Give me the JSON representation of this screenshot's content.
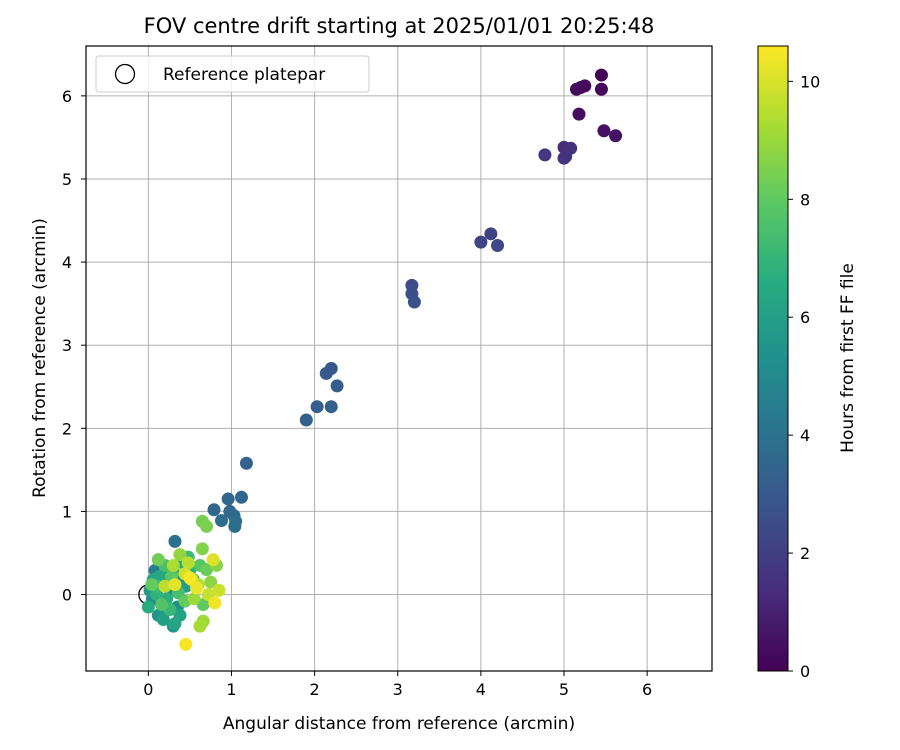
{
  "chart_data": {
    "type": "scatter",
    "title": "FOV centre drift starting at 2025/01/01 20:25:48",
    "xlabel": "Angular distance from reference (arcmin)",
    "ylabel": "Rotation from reference (arcmin)",
    "xlim": [
      -0.75,
      6.78
    ],
    "ylim": [
      -0.92,
      6.6
    ],
    "xticks": [
      0,
      1,
      2,
      3,
      4,
      5,
      6
    ],
    "yticks": [
      0,
      1,
      2,
      3,
      4,
      5,
      6
    ],
    "grid": true,
    "legend": {
      "placement": "top-left",
      "entries": [
        {
          "label": "Reference platepar",
          "marker": "open-circle"
        }
      ]
    },
    "reference_point": {
      "x": 0,
      "y": 0
    },
    "colorbar": {
      "label": "Hours from first FF file",
      "colormap": "viridis",
      "range": [
        0,
        10.6
      ],
      "ticks": [
        0,
        2,
        4,
        6,
        8,
        10
      ]
    },
    "points": [
      {
        "x": 5.45,
        "y": 6.25,
        "c": 0.1
      },
      {
        "x": 5.2,
        "y": 6.1,
        "c": 0.2
      },
      {
        "x": 5.15,
        "y": 6.08,
        "c": 0.3
      },
      {
        "x": 5.45,
        "y": 6.08,
        "c": 0.15
      },
      {
        "x": 5.25,
        "y": 6.12,
        "c": 0.25
      },
      {
        "x": 5.18,
        "y": 5.78,
        "c": 0.4
      },
      {
        "x": 5.48,
        "y": 5.58,
        "c": 0.5
      },
      {
        "x": 5.62,
        "y": 5.52,
        "c": 0.55
      },
      {
        "x": 5.0,
        "y": 5.38,
        "c": 1.4
      },
      {
        "x": 5.08,
        "y": 5.37,
        "c": 1.5
      },
      {
        "x": 5.02,
        "y": 5.27,
        "c": 1.6
      },
      {
        "x": 4.77,
        "y": 5.29,
        "c": 1.7
      },
      {
        "x": 5.0,
        "y": 5.25,
        "c": 1.55
      },
      {
        "x": 4.12,
        "y": 4.34,
        "c": 2.1
      },
      {
        "x": 4.0,
        "y": 4.24,
        "c": 2.2
      },
      {
        "x": 4.2,
        "y": 4.2,
        "c": 2.3
      },
      {
        "x": 3.17,
        "y": 3.72,
        "c": 2.5
      },
      {
        "x": 3.17,
        "y": 3.62,
        "c": 2.6
      },
      {
        "x": 3.2,
        "y": 3.52,
        "c": 2.7
      },
      {
        "x": 2.2,
        "y": 2.72,
        "c": 2.9
      },
      {
        "x": 2.14,
        "y": 2.66,
        "c": 3.0
      },
      {
        "x": 2.27,
        "y": 2.51,
        "c": 3.1
      },
      {
        "x": 2.03,
        "y": 2.26,
        "c": 3.2
      },
      {
        "x": 2.2,
        "y": 2.26,
        "c": 3.25
      },
      {
        "x": 1.9,
        "y": 2.1,
        "c": 3.3
      },
      {
        "x": 1.18,
        "y": 1.58,
        "c": 3.4
      },
      {
        "x": 0.96,
        "y": 1.15,
        "c": 3.5
      },
      {
        "x": 1.12,
        "y": 1.17,
        "c": 3.55
      },
      {
        "x": 0.79,
        "y": 1.02,
        "c": 3.6
      },
      {
        "x": 0.98,
        "y": 1.0,
        "c": 3.65
      },
      {
        "x": 1.03,
        "y": 0.95,
        "c": 3.7
      },
      {
        "x": 0.88,
        "y": 0.89,
        "c": 3.75
      },
      {
        "x": 1.05,
        "y": 0.88,
        "c": 3.8
      },
      {
        "x": 1.04,
        "y": 0.82,
        "c": 3.85
      },
      {
        "x": 0.32,
        "y": 0.64,
        "c": 4.0
      },
      {
        "x": 0.08,
        "y": 0.29,
        "c": 4.5
      },
      {
        "x": 0.22,
        "y": 0.3,
        "c": 4.7
      },
      {
        "x": 0.1,
        "y": 0.12,
        "c": 4.8
      },
      {
        "x": 0.28,
        "y": 0.05,
        "c": 4.9
      },
      {
        "x": 0.05,
        "y": -0.05,
        "c": 5.0
      },
      {
        "x": 0.15,
        "y": -0.1,
        "c": 5.1
      },
      {
        "x": 0.35,
        "y": -0.15,
        "c": 5.2
      },
      {
        "x": 0.4,
        "y": 0.2,
        "c": 5.3
      },
      {
        "x": 0.12,
        "y": -0.25,
        "c": 5.4
      },
      {
        "x": 0.3,
        "y": -0.38,
        "c": 5.5
      },
      {
        "x": 0.2,
        "y": -0.2,
        "c": 5.6
      },
      {
        "x": 0.02,
        "y": 0.05,
        "c": 5.7
      },
      {
        "x": 0.25,
        "y": 0.15,
        "c": 5.8
      },
      {
        "x": 0.45,
        "y": 0.1,
        "c": 5.9
      },
      {
        "x": 0.18,
        "y": -0.3,
        "c": 6.0
      },
      {
        "x": 0.38,
        "y": -0.25,
        "c": 6.1
      },
      {
        "x": 0.06,
        "y": 0.18,
        "c": 6.2
      },
      {
        "x": 0.32,
        "y": -0.35,
        "c": 6.3
      },
      {
        "x": 0.14,
        "y": 0.22,
        "c": 6.4
      },
      {
        "x": 0.42,
        "y": 0.38,
        "c": 6.5
      },
      {
        "x": 0.0,
        "y": -0.15,
        "c": 6.6
      },
      {
        "x": 0.22,
        "y": -0.05,
        "c": 6.7
      },
      {
        "x": 0.5,
        "y": 0.3,
        "c": 6.8
      },
      {
        "x": 0.1,
        "y": 0.0,
        "c": 6.9
      },
      {
        "x": 0.3,
        "y": 0.28,
        "c": 7.0
      },
      {
        "x": 0.26,
        "y": -0.18,
        "c": 7.1
      },
      {
        "x": 0.48,
        "y": 0.45,
        "c": 7.2
      },
      {
        "x": 0.12,
        "y": 0.1,
        "c": 7.3
      },
      {
        "x": 0.36,
        "y": 0.02,
        "c": 7.4
      },
      {
        "x": 0.2,
        "y": 0.35,
        "c": 7.5
      },
      {
        "x": 0.54,
        "y": 0.18,
        "c": 7.6
      },
      {
        "x": 0.16,
        "y": -0.12,
        "c": 7.7
      },
      {
        "x": 0.62,
        "y": 0.35,
        "c": 7.8
      },
      {
        "x": 0.28,
        "y": 0.22,
        "c": 7.9
      },
      {
        "x": 0.66,
        "y": -0.12,
        "c": 8.0
      },
      {
        "x": 0.04,
        "y": 0.12,
        "c": 8.05
      },
      {
        "x": 0.44,
        "y": -0.08,
        "c": 8.1
      },
      {
        "x": 0.7,
        "y": 0.3,
        "c": 8.2
      },
      {
        "x": 0.12,
        "y": 0.42,
        "c": 8.3
      },
      {
        "x": 0.65,
        "y": 0.88,
        "c": 8.4
      },
      {
        "x": 0.7,
        "y": 0.82,
        "c": 8.5
      },
      {
        "x": 0.65,
        "y": 0.55,
        "c": 8.6
      },
      {
        "x": 0.82,
        "y": 0.35,
        "c": 8.7
      },
      {
        "x": 0.75,
        "y": 0.15,
        "c": 8.8
      },
      {
        "x": 0.38,
        "y": 0.48,
        "c": 8.9
      },
      {
        "x": 0.55,
        "y": -0.05,
        "c": 9.0
      },
      {
        "x": 0.66,
        "y": -0.32,
        "c": 9.1
      },
      {
        "x": 0.62,
        "y": -0.38,
        "c": 9.2
      },
      {
        "x": 0.3,
        "y": 0.35,
        "c": 9.3
      },
      {
        "x": 0.6,
        "y": 0.12,
        "c": 9.4
      },
      {
        "x": 0.48,
        "y": 0.38,
        "c": 9.5
      },
      {
        "x": 0.2,
        "y": 0.1,
        "c": 9.6
      },
      {
        "x": 0.72,
        "y": 0.0,
        "c": 9.7
      },
      {
        "x": 0.85,
        "y": 0.05,
        "c": 9.8
      },
      {
        "x": 0.44,
        "y": 0.25,
        "c": 9.9
      },
      {
        "x": 0.52,
        "y": 0.18,
        "c": 10.0
      },
      {
        "x": 0.78,
        "y": 0.42,
        "c": 10.1
      },
      {
        "x": 0.32,
        "y": 0.12,
        "c": 10.2
      },
      {
        "x": 0.58,
        "y": 0.08,
        "c": 10.3
      },
      {
        "x": 0.8,
        "y": -0.1,
        "c": 10.4
      },
      {
        "x": 0.45,
        "y": -0.6,
        "c": 10.5
      },
      {
        "x": 0.5,
        "y": 0.2,
        "c": 10.55
      }
    ]
  }
}
